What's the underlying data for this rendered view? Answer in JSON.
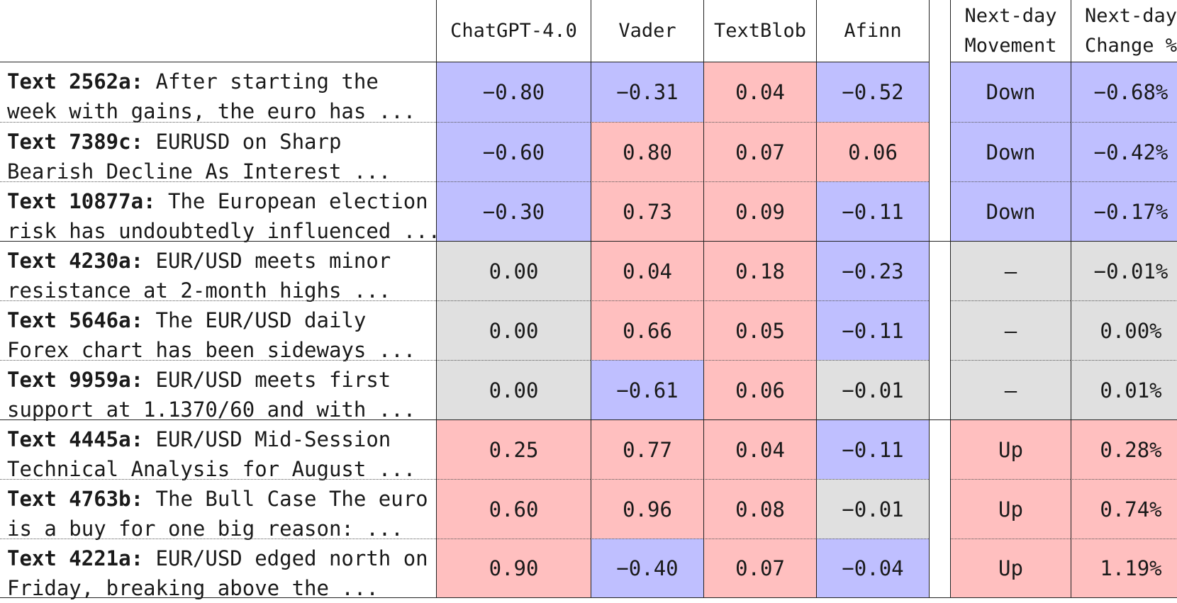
{
  "headers": {
    "text": "",
    "chatgpt": "ChatGPT-4.0",
    "vader": "Vader",
    "textblob": "TextBlob",
    "afinn": "Afinn",
    "movement_l1": "Next-day",
    "movement_l2": "Movement",
    "change_l1": "Next-day",
    "change_l2": "Change %"
  },
  "colors": {
    "negative": "#bfbfff",
    "positive": "#ffbfbf",
    "neutral": "#e0e0e0"
  },
  "rows": [
    {
      "id": "Text 2562a:",
      "l1": "After starting the",
      "l2": "week with gains, the euro has ...",
      "chatgpt": "−0.80",
      "vader": "−0.31",
      "textblob": "0.04",
      "afinn": "−0.52",
      "movement": "Down",
      "change": "−0.68%",
      "cls": [
        "neg",
        "neg",
        "pos",
        "neg",
        "neg",
        "neg"
      ]
    },
    {
      "id": "Text 7389c:",
      "l1": "EURUSD on Sharp",
      "l2": "Bearish Decline As Interest ...",
      "chatgpt": "−0.60",
      "vader": "0.80",
      "textblob": "0.07",
      "afinn": "0.06",
      "movement": "Down",
      "change": "−0.42%",
      "cls": [
        "neg",
        "pos",
        "pos",
        "pos",
        "neg",
        "neg"
      ]
    },
    {
      "id": "Text 10877a:",
      "l1": "The European election",
      "l2": "risk has undoubtedly influenced ...",
      "chatgpt": "−0.30",
      "vader": "0.73",
      "textblob": "0.09",
      "afinn": "−0.11",
      "movement": "Down",
      "change": "−0.17%",
      "cls": [
        "neg",
        "pos",
        "pos",
        "neg",
        "neg",
        "neg"
      ]
    },
    {
      "id": "Text 4230a:",
      "l1": "EUR/USD meets minor",
      "l2": "resistance at 2-month highs ...",
      "chatgpt": "0.00",
      "vader": "0.04",
      "textblob": "0.18",
      "afinn": "−0.23",
      "movement": "–",
      "change": "−0.01%",
      "cls": [
        "neu",
        "pos",
        "pos",
        "neg",
        "neu",
        "neu"
      ]
    },
    {
      "id": "Text 5646a:",
      "l1": "The EUR/USD daily",
      "l2": "Forex chart has been sideways ...",
      "chatgpt": "0.00",
      "vader": "0.66",
      "textblob": "0.05",
      "afinn": "−0.11",
      "movement": "–",
      "change": "0.00%",
      "cls": [
        "neu",
        "pos",
        "pos",
        "neg",
        "neu",
        "neu"
      ]
    },
    {
      "id": "Text 9959a:",
      "l1": "EUR/USD meets first",
      "l2": "support at 1.1370/60 and with ...",
      "chatgpt": "0.00",
      "vader": "−0.61",
      "textblob": "0.06",
      "afinn": "−0.01",
      "movement": "–",
      "change": "0.01%",
      "cls": [
        "neu",
        "neg",
        "pos",
        "neu",
        "neu",
        "neu"
      ]
    },
    {
      "id": "Text 4445a:",
      "l1": "EUR/USD Mid-Session",
      "l2": "Technical Analysis for August ...",
      "chatgpt": "0.25",
      "vader": "0.77",
      "textblob": "0.04",
      "afinn": "−0.11",
      "movement": "Up",
      "change": "0.28%",
      "cls": [
        "pos",
        "pos",
        "pos",
        "neg",
        "pos",
        "pos"
      ]
    },
    {
      "id": "Text 4763b:",
      "l1": "The Bull Case The euro",
      "l2": "is a buy for one big reason: ...",
      "chatgpt": "0.60",
      "vader": "0.96",
      "textblob": "0.08",
      "afinn": "−0.01",
      "movement": "Up",
      "change": "0.74%",
      "cls": [
        "pos",
        "pos",
        "pos",
        "neu",
        "pos",
        "pos"
      ]
    },
    {
      "id": "Text 4221a:",
      "l1": "EUR/USD edged north on",
      "l2": "Friday, breaking above the ...",
      "chatgpt": "0.90",
      "vader": "−0.40",
      "textblob": "0.07",
      "afinn": "−0.04",
      "movement": "Up",
      "change": "1.19%",
      "cls": [
        "pos",
        "neg",
        "pos",
        "neg",
        "pos",
        "pos"
      ]
    }
  ]
}
